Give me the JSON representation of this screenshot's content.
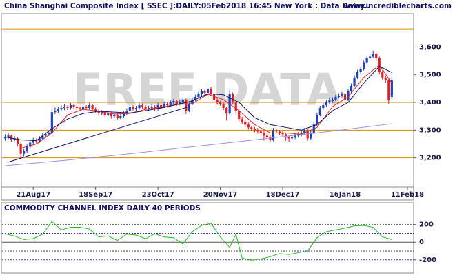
{
  "chart_data": [
    {
      "type": "candlestick",
      "title": "China Shanghai Composite Index [ SSEC ]:DAILY:05Feb2018 16:45 New York : Data Delay..",
      "source": "www.incrediblecharts.com",
      "watermark": "FREE DATA",
      "up_color": "#1f3fbf",
      "down_color": "#e02020",
      "candles": [
        [
          3270,
          3285,
          3262,
          3275
        ],
        [
          3275,
          3288,
          3268,
          3280
        ],
        [
          3280,
          3284,
          3258,
          3265
        ],
        [
          3265,
          3278,
          3260,
          3270
        ],
        [
          3270,
          3274,
          3242,
          3250
        ],
        [
          3250,
          3255,
          3196,
          3215
        ],
        [
          3215,
          3232,
          3205,
          3225
        ],
        [
          3225,
          3248,
          3218,
          3240
        ],
        [
          3240,
          3262,
          3232,
          3255
        ],
        [
          3255,
          3272,
          3248,
          3265
        ],
        [
          3265,
          3270,
          3252,
          3260
        ],
        [
          3260,
          3278,
          3254,
          3270
        ],
        [
          3270,
          3288,
          3263,
          3280
        ],
        [
          3280,
          3292,
          3272,
          3285
        ],
        [
          3285,
          3298,
          3279,
          3290
        ],
        [
          3290,
          3375,
          3288,
          3365
        ],
        [
          3365,
          3382,
          3358,
          3370
        ],
        [
          3370,
          3384,
          3362,
          3375
        ],
        [
          3375,
          3390,
          3368,
          3380
        ],
        [
          3380,
          3393,
          3372,
          3385
        ],
        [
          3385,
          3390,
          3372,
          3380
        ],
        [
          3380,
          3398,
          3374,
          3390
        ],
        [
          3390,
          3396,
          3378,
          3385
        ],
        [
          3385,
          3390,
          3372,
          3380
        ],
        [
          3380,
          3386,
          3368,
          3375
        ],
        [
          3375,
          3392,
          3370,
          3385
        ],
        [
          3385,
          3390,
          3373,
          3380
        ],
        [
          3380,
          3398,
          3374,
          3390
        ],
        [
          3390,
          3394,
          3368,
          3375
        ],
        [
          3375,
          3382,
          3362,
          3370
        ],
        [
          3370,
          3376,
          3352,
          3360
        ],
        [
          3360,
          3372,
          3354,
          3365
        ],
        [
          3365,
          3370,
          3348,
          3355
        ],
        [
          3355,
          3368,
          3350,
          3360
        ],
        [
          3360,
          3366,
          3342,
          3350
        ],
        [
          3350,
          3362,
          3345,
          3355
        ],
        [
          3355,
          3360,
          3338,
          3345
        ],
        [
          3345,
          3358,
          3340,
          3350
        ],
        [
          3350,
          3368,
          3345,
          3360
        ],
        [
          3360,
          3378,
          3354,
          3370
        ],
        [
          3370,
          3393,
          3364,
          3385
        ],
        [
          3385,
          3390,
          3368,
          3375
        ],
        [
          3375,
          3388,
          3370,
          3380
        ],
        [
          3380,
          3398,
          3374,
          3390
        ],
        [
          3390,
          3396,
          3378,
          3385
        ],
        [
          3385,
          3390,
          3368,
          3375
        ],
        [
          3375,
          3388,
          3370,
          3380
        ],
        [
          3380,
          3393,
          3374,
          3385
        ],
        [
          3385,
          3390,
          3368,
          3375
        ],
        [
          3375,
          3398,
          3370,
          3390
        ],
        [
          3390,
          3396,
          3378,
          3385
        ],
        [
          3385,
          3403,
          3380,
          3395
        ],
        [
          3395,
          3400,
          3382,
          3390
        ],
        [
          3390,
          3408,
          3384,
          3400
        ],
        [
          3400,
          3413,
          3394,
          3405
        ],
        [
          3405,
          3410,
          3388,
          3395
        ],
        [
          3395,
          3408,
          3390,
          3400
        ],
        [
          3400,
          3418,
          3394,
          3410
        ],
        [
          3410,
          3414,
          3358,
          3370
        ],
        [
          3370,
          3403,
          3365,
          3395
        ],
        [
          3395,
          3418,
          3390,
          3410
        ],
        [
          3410,
          3428,
          3404,
          3420
        ],
        [
          3420,
          3438,
          3414,
          3430
        ],
        [
          3430,
          3448,
          3424,
          3440
        ],
        [
          3440,
          3446,
          3428,
          3435
        ],
        [
          3435,
          3458,
          3430,
          3450
        ],
        [
          3450,
          3455,
          3422,
          3430
        ],
        [
          3430,
          3436,
          3402,
          3410
        ],
        [
          3410,
          3416,
          3392,
          3400
        ],
        [
          3400,
          3406,
          3388,
          3395
        ],
        [
          3395,
          3400,
          3372,
          3380
        ],
        [
          3380,
          3385,
          3335,
          3360
        ],
        [
          3360,
          3445,
          3355,
          3430
        ],
        [
          3430,
          3436,
          3392,
          3400
        ],
        [
          3400,
          3406,
          3362,
          3370
        ],
        [
          3370,
          3376,
          3332,
          3340
        ],
        [
          3340,
          3348,
          3322,
          3330
        ],
        [
          3330,
          3338,
          3312,
          3320
        ],
        [
          3320,
          3328,
          3302,
          3310
        ],
        [
          3310,
          3316,
          3297,
          3305
        ],
        [
          3305,
          3312,
          3292,
          3300
        ],
        [
          3300,
          3308,
          3287,
          3295
        ],
        [
          3295,
          3302,
          3282,
          3290
        ],
        [
          3290,
          3298,
          3262,
          3280
        ],
        [
          3280,
          3288,
          3268,
          3275
        ],
        [
          3275,
          3282,
          3258,
          3265
        ],
        [
          3265,
          3308,
          3260,
          3300
        ],
        [
          3300,
          3306,
          3288,
          3295
        ],
        [
          3295,
          3300,
          3283,
          3290
        ],
        [
          3290,
          3296,
          3278,
          3285
        ],
        [
          3285,
          3290,
          3262,
          3275
        ],
        [
          3275,
          3280,
          3258,
          3270
        ],
        [
          3270,
          3283,
          3264,
          3275
        ],
        [
          3275,
          3288,
          3268,
          3280
        ],
        [
          3280,
          3293,
          3273,
          3285
        ],
        [
          3285,
          3298,
          3278,
          3290
        ],
        [
          3290,
          3308,
          3284,
          3300
        ],
        [
          3300,
          3305,
          3262,
          3270
        ],
        [
          3270,
          3298,
          3265,
          3290
        ],
        [
          3290,
          3328,
          3285,
          3320
        ],
        [
          3320,
          3363,
          3315,
          3355
        ],
        [
          3355,
          3388,
          3350,
          3380
        ],
        [
          3380,
          3398,
          3374,
          3390
        ],
        [
          3390,
          3408,
          3384,
          3400
        ],
        [
          3400,
          3418,
          3394,
          3410
        ],
        [
          3405,
          3418,
          3398,
          3410
        ],
        [
          3410,
          3428,
          3404,
          3420
        ],
        [
          3420,
          3433,
          3414,
          3425
        ],
        [
          3425,
          3438,
          3418,
          3430
        ],
        [
          3430,
          3436,
          3402,
          3410
        ],
        [
          3410,
          3448,
          3405,
          3440
        ],
        [
          3440,
          3468,
          3435,
          3460
        ],
        [
          3460,
          3498,
          3455,
          3490
        ],
        [
          3490,
          3518,
          3484,
          3510
        ],
        [
          3510,
          3528,
          3504,
          3520
        ],
        [
          3520,
          3553,
          3515,
          3545
        ],
        [
          3545,
          3568,
          3540,
          3560
        ],
        [
          3560,
          3575,
          3554,
          3565
        ],
        [
          3565,
          3587,
          3560,
          3575
        ],
        [
          3575,
          3582,
          3552,
          3560
        ],
        [
          3560,
          3566,
          3502,
          3510
        ],
        [
          3510,
          3516,
          3482,
          3490
        ],
        [
          3490,
          3496,
          3472,
          3480
        ],
        [
          3480,
          3486,
          3395,
          3410
        ],
        [
          3420,
          3492,
          3412,
          3480
        ]
      ],
      "series": [
        {
          "color": "#e02020",
          "x": [
            5,
            10,
            15,
            20,
            25,
            30,
            35,
            40,
            45,
            50,
            55,
            60,
            65,
            70,
            75,
            80,
            85,
            90,
            95,
            100,
            105,
            110,
            115,
            120,
            124
          ],
          "values": [
            3235,
            3250,
            3290,
            3355,
            3375,
            3368,
            3358,
            3360,
            3375,
            3382,
            3393,
            3395,
            3430,
            3410,
            3370,
            3320,
            3290,
            3290,
            3285,
            3310,
            3385,
            3420,
            3490,
            3535,
            3470
          ]
        },
        {
          "color": "#101070",
          "x": [
            0,
            5,
            10,
            15,
            20,
            25,
            30,
            35,
            40,
            45,
            50,
            55,
            60,
            65,
            70,
            75,
            80,
            85,
            90,
            95,
            100,
            105,
            110,
            115,
            120,
            124
          ],
          "values": [
            3275,
            3265,
            3262,
            3305,
            3340,
            3360,
            3368,
            3365,
            3362,
            3370,
            3380,
            3392,
            3405,
            3432,
            3428,
            3400,
            3345,
            3320,
            3310,
            3300,
            3320,
            3370,
            3400,
            3470,
            3530,
            3508
          ]
        },
        {
          "color": "#9a90e0",
          "x": [
            0,
            20,
            40,
            60,
            80,
            100,
            124
          ],
          "values": [
            3172,
            3192,
            3215,
            3240,
            3265,
            3290,
            3323
          ]
        },
        {
          "color": "#101070",
          "x": [
            1,
            59
          ],
          "values": [
            3185,
            3385
          ]
        }
      ],
      "horizontal_lines": [
        3665,
        3400,
        3300,
        3200
      ],
      "horizontal_line_color": "#e08a00",
      "xlim": [
        -1,
        131
      ],
      "ylim": [
        3095,
        3715
      ],
      "yticks": [
        {
          "value": 3200,
          "label": "3,200"
        },
        {
          "value": 3300,
          "label": "3,300"
        },
        {
          "value": 3400,
          "label": "3,400"
        },
        {
          "value": 3500,
          "label": "3,500"
        },
        {
          "value": 3600,
          "label": "3,600"
        }
      ],
      "xticks": [
        {
          "value": 9,
          "label": "21Aug17"
        },
        {
          "value": 29,
          "label": "18Sep17"
        },
        {
          "value": 49,
          "label": "23Oct17"
        },
        {
          "value": 69,
          "label": "20Nov17"
        },
        {
          "value": 89,
          "label": "18Dec17"
        },
        {
          "value": 109,
          "label": "16Jan18"
        },
        {
          "value": 129,
          "label": "11Feb18"
        }
      ]
    },
    {
      "type": "line",
      "title": "COMMODITY CHANNEL INDEX DAILY 40 PERIODS",
      "color": "#22bb22",
      "x": [
        0,
        3,
        6,
        9,
        12,
        15,
        18,
        21,
        24,
        27,
        30,
        33,
        36,
        39,
        42,
        45,
        48,
        51,
        54,
        57,
        60,
        63,
        66,
        69,
        72,
        74,
        76,
        79,
        82,
        85,
        88,
        91,
        94,
        97,
        100,
        103,
        106,
        109,
        112,
        115,
        118,
        121,
        124
      ],
      "values": [
        95,
        70,
        30,
        40,
        90,
        235,
        140,
        170,
        170,
        150,
        60,
        70,
        20,
        90,
        80,
        40,
        95,
        60,
        50,
        -20,
        120,
        190,
        215,
        60,
        -60,
        90,
        -180,
        -205,
        -190,
        -165,
        -130,
        -140,
        -120,
        -100,
        50,
        120,
        140,
        160,
        185,
        190,
        170,
        60,
        30
      ],
      "reference_lines": [
        200,
        100,
        0,
        -100,
        -200
      ],
      "xlim": [
        -1,
        131
      ],
      "ylim": [
        -335,
        425
      ],
      "yticks": [
        200,
        0,
        -200
      ]
    }
  ]
}
